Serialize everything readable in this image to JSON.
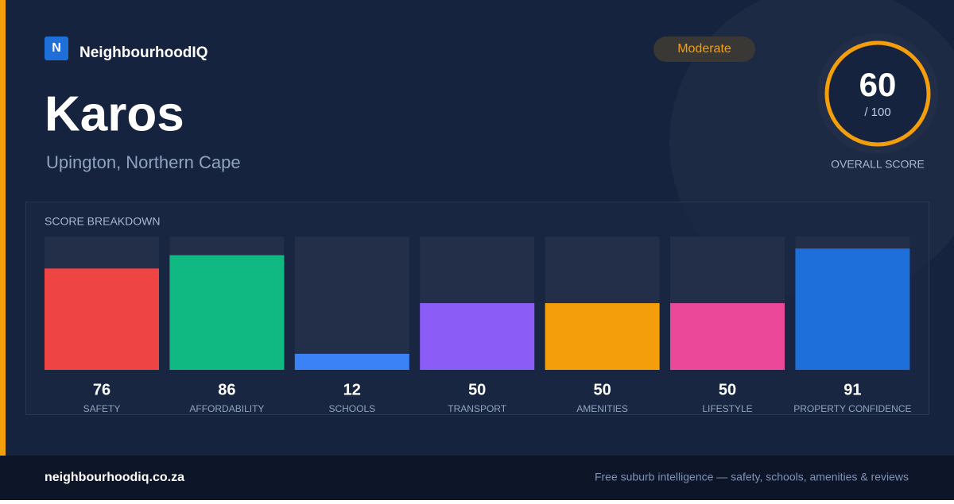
{
  "brand": {
    "logo": "N",
    "name": "NeighbourhoodIQ"
  },
  "header": {
    "title": "Karos",
    "subtitle": "Upington, Northern Cape",
    "badge": "Moderate"
  },
  "score": {
    "value": 60,
    "max_label": "/ 100",
    "label": "OVERALL SCORE"
  },
  "chart_data": {
    "type": "bar",
    "title": "SCORE BREAKDOWN",
    "categories": [
      "SAFETY",
      "AFFORDABILITY",
      "SCHOOLS",
      "TRANSPORT",
      "AMENITIES",
      "LIFESTYLE",
      "PROPERTY CONFIDENCE"
    ],
    "values": [
      76,
      86,
      12,
      50,
      50,
      50,
      91
    ],
    "colors": [
      "#ef4444",
      "#10b981",
      "#3b82f6",
      "#8b5cf6",
      "#f59e0b",
      "#ec4899",
      "#1e6fd9"
    ],
    "ylim": [
      0,
      100
    ]
  },
  "footer": {
    "site": "neighbourhoodiq.co.za",
    "tagline": "Free suburb intelligence — safety, schools, amenities & reviews"
  }
}
